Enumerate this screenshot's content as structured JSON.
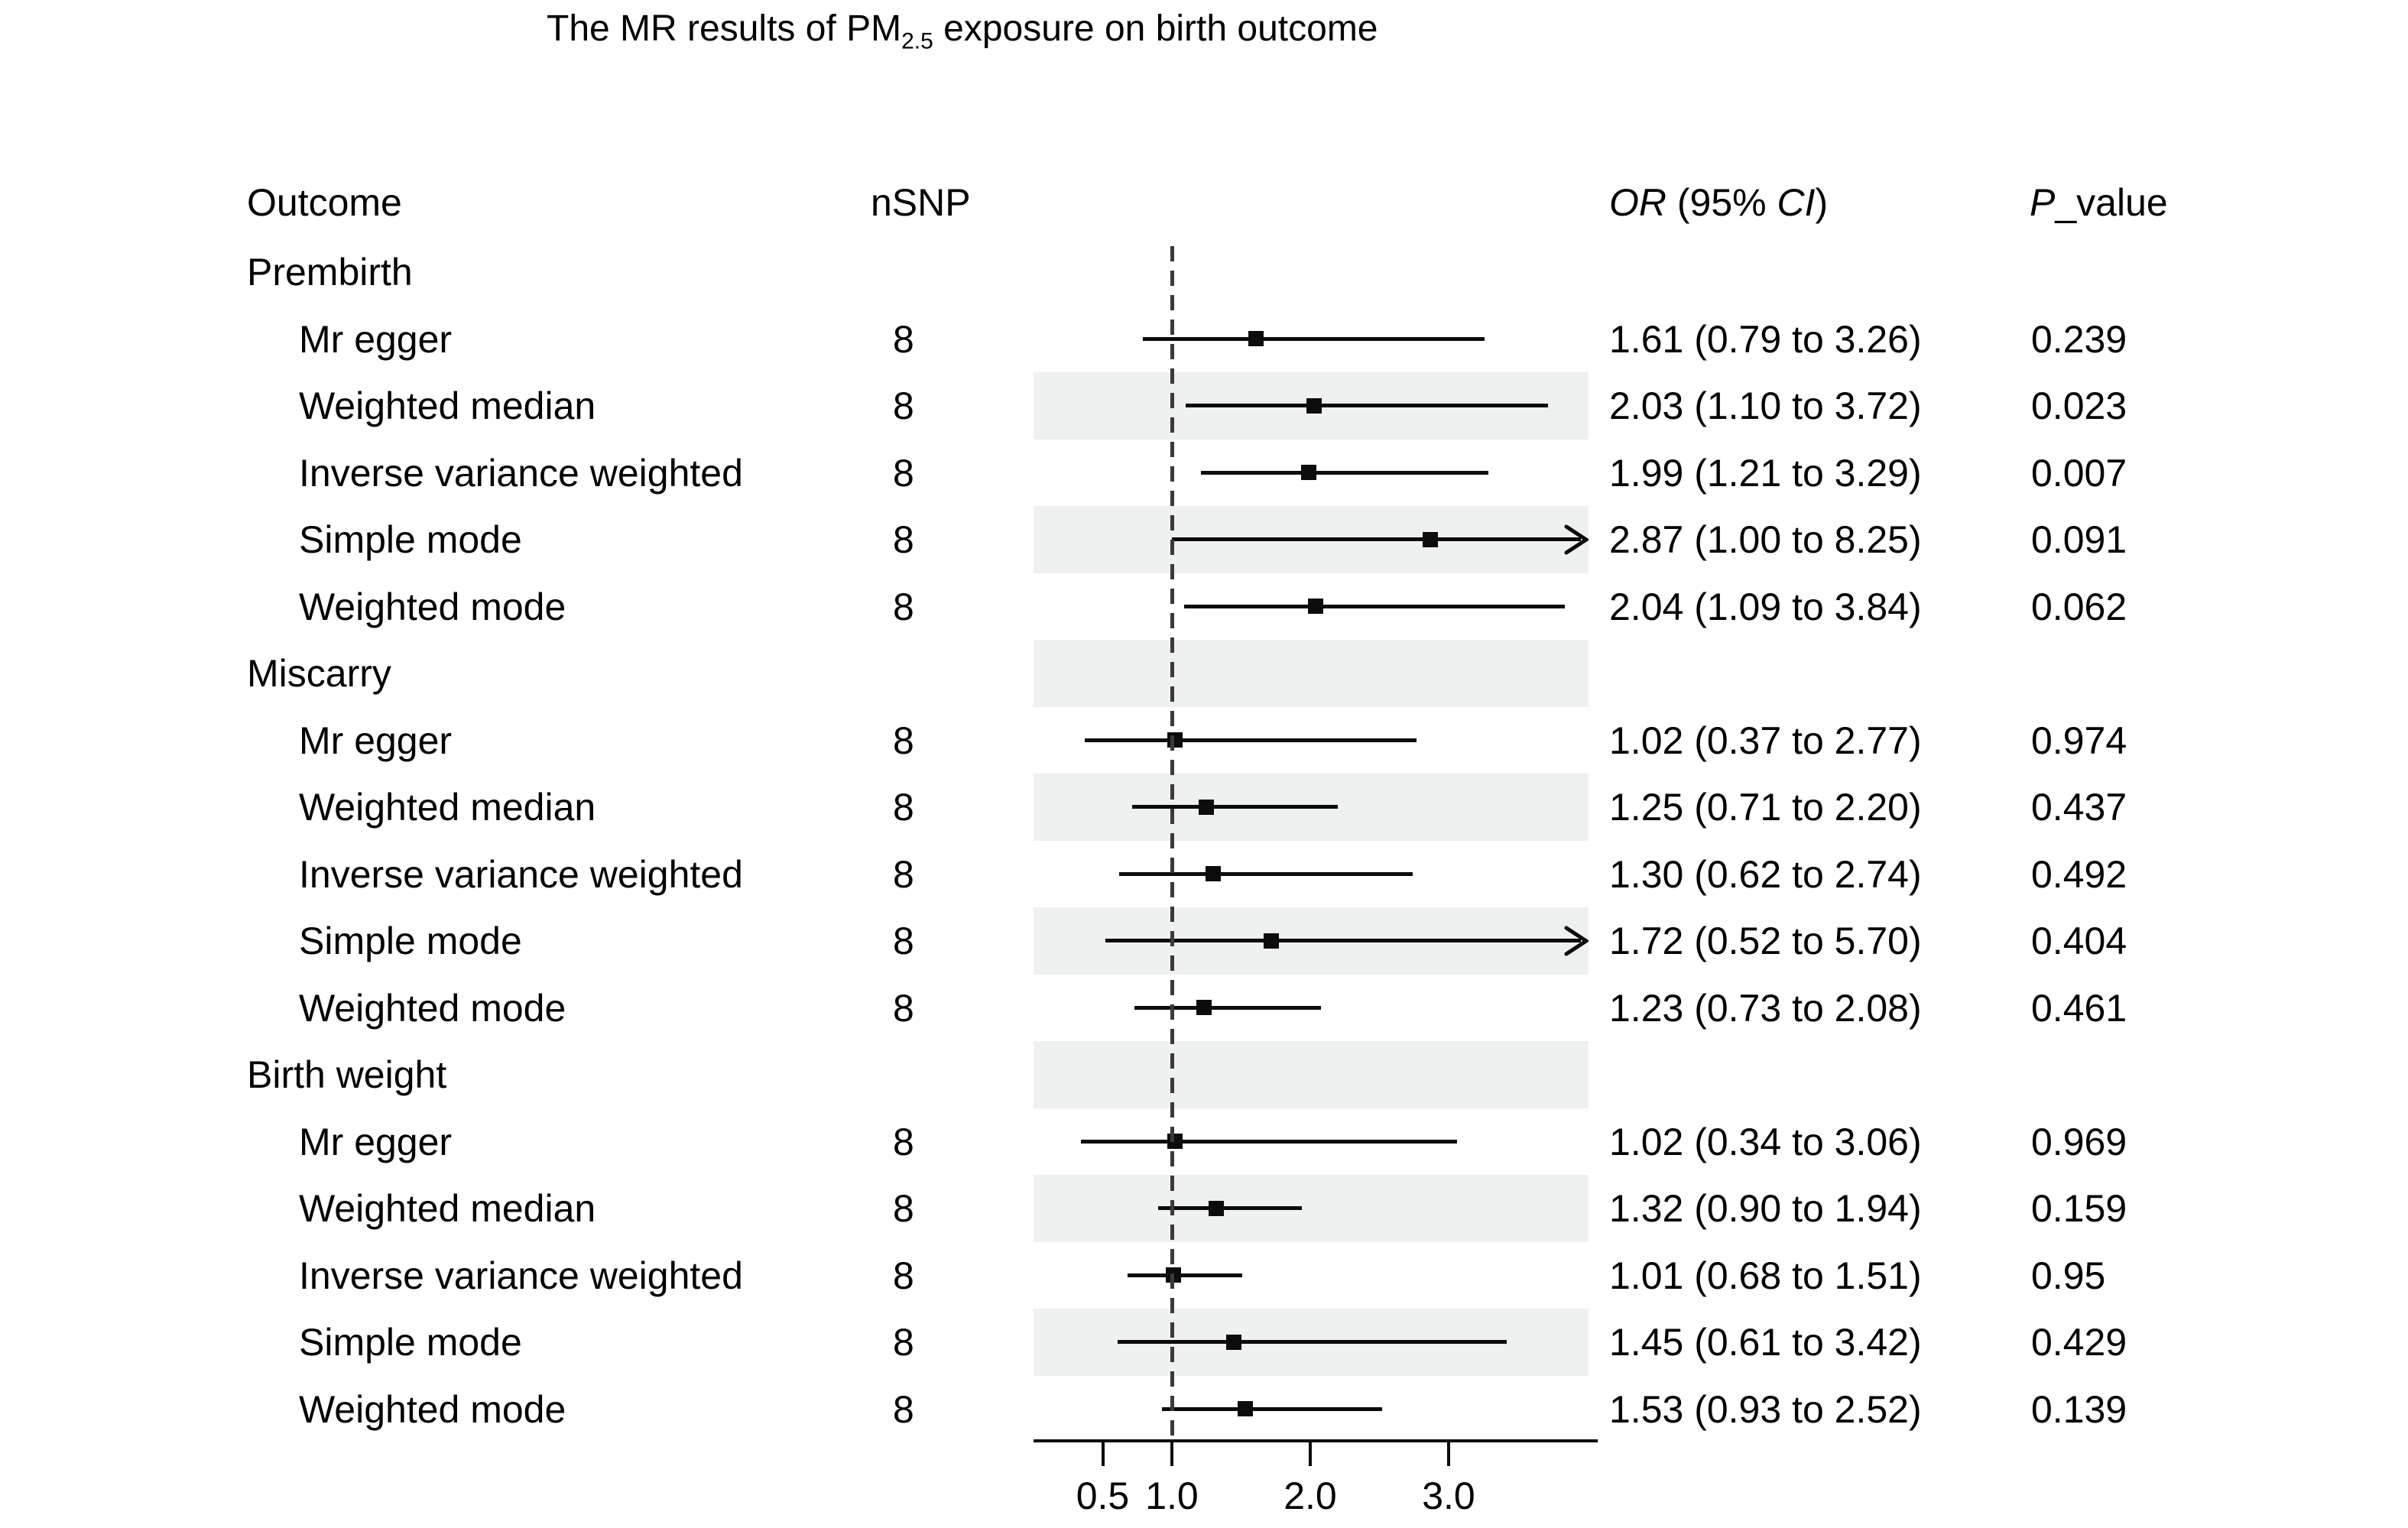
{
  "title": {
    "pre": "The MR results of PM",
    "sub": "2.5",
    "post": " exposure on birth outcome"
  },
  "columns": {
    "outcome": "Outcome",
    "nsnp": "nSNP",
    "or_ci": {
      "or": "OR",
      "mid": " (95% ",
      "ci": "CI",
      "close": ")"
    },
    "p": {
      "p": "P",
      "rest": "_value"
    }
  },
  "axis": {
    "scale": "linear",
    "range": [
      0,
      4.02
    ],
    "ticks": [
      0.5,
      1.0,
      2.0,
      3.0
    ],
    "tick_labels": [
      "0.5",
      "1.0",
      "2.0",
      "3.0"
    ],
    "reference_line": 1.0
  },
  "chart_data": {
    "type": "forest",
    "title": "The MR results of PM2.5 exposure on birth outcome",
    "xlabel": "",
    "reference_value": 1.0,
    "rows": [
      {
        "kind": "group",
        "label": "Prembirth",
        "shaded": false
      },
      {
        "kind": "method",
        "label": "Mr egger",
        "nsnp": "8",
        "est": 1.61,
        "lo": 0.79,
        "hi": 3.26,
        "or_ci": "1.61 (0.79 to 3.26)",
        "p": "0.239",
        "shaded": false,
        "arrow": false
      },
      {
        "kind": "method",
        "label": "Weighted median",
        "nsnp": "8",
        "est": 2.03,
        "lo": 1.1,
        "hi": 3.72,
        "or_ci": "2.03 (1.10 to 3.72)",
        "p": "0.023",
        "shaded": true,
        "arrow": false
      },
      {
        "kind": "method",
        "label": "Inverse variance weighted",
        "nsnp": "8",
        "est": 1.99,
        "lo": 1.21,
        "hi": 3.29,
        "or_ci": "1.99 (1.21 to 3.29)",
        "p": "0.007",
        "shaded": false,
        "arrow": false
      },
      {
        "kind": "method",
        "label": "Simple mode",
        "nsnp": "8",
        "est": 2.87,
        "lo": 1.0,
        "hi": 8.25,
        "or_ci": "2.87 (1.00 to 8.25)",
        "p": "0.091",
        "shaded": true,
        "arrow": true
      },
      {
        "kind": "method",
        "label": "Weighted mode",
        "nsnp": "8",
        "est": 2.04,
        "lo": 1.09,
        "hi": 3.84,
        "or_ci": "2.04 (1.09 to 3.84)",
        "p": "0.062",
        "shaded": false,
        "arrow": false
      },
      {
        "kind": "group",
        "label": "Miscarry",
        "shaded": true
      },
      {
        "kind": "method",
        "label": "Mr egger",
        "nsnp": "8",
        "est": 1.02,
        "lo": 0.37,
        "hi": 2.77,
        "or_ci": "1.02 (0.37 to 2.77)",
        "p": "0.974",
        "shaded": false,
        "arrow": false
      },
      {
        "kind": "method",
        "label": "Weighted median",
        "nsnp": "8",
        "est": 1.25,
        "lo": 0.71,
        "hi": 2.2,
        "or_ci": "1.25 (0.71 to 2.20)",
        "p": "0.437",
        "shaded": true,
        "arrow": false
      },
      {
        "kind": "method",
        "label": "Inverse variance weighted",
        "nsnp": "8",
        "est": 1.3,
        "lo": 0.62,
        "hi": 2.74,
        "or_ci": "1.30 (0.62 to 2.74)",
        "p": "0.492",
        "shaded": false,
        "arrow": false
      },
      {
        "kind": "method",
        "label": "Simple mode",
        "nsnp": "8",
        "est": 1.72,
        "lo": 0.52,
        "hi": 5.7,
        "or_ci": "1.72 (0.52 to 5.70)",
        "p": "0.404",
        "shaded": true,
        "arrow": true
      },
      {
        "kind": "method",
        "label": "Weighted mode",
        "nsnp": "8",
        "est": 1.23,
        "lo": 0.73,
        "hi": 2.08,
        "or_ci": "1.23 (0.73 to 2.08)",
        "p": "0.461",
        "shaded": false,
        "arrow": false
      },
      {
        "kind": "group",
        "label": "Birth weight",
        "shaded": true
      },
      {
        "kind": "method",
        "label": "Mr egger",
        "nsnp": "8",
        "est": 1.02,
        "lo": 0.34,
        "hi": 3.06,
        "or_ci": "1.02 (0.34 to 3.06)",
        "p": "0.969",
        "shaded": false,
        "arrow": false
      },
      {
        "kind": "method",
        "label": "Weighted median",
        "nsnp": "8",
        "est": 1.32,
        "lo": 0.9,
        "hi": 1.94,
        "or_ci": "1.32 (0.90 to 1.94)",
        "p": "0.159",
        "shaded": true,
        "arrow": false
      },
      {
        "kind": "method",
        "label": "Inverse variance weighted",
        "nsnp": "8",
        "est": 1.01,
        "lo": 0.68,
        "hi": 1.51,
        "or_ci": "1.01 (0.68 to 1.51)",
        "p": "0.95",
        "shaded": false,
        "arrow": false
      },
      {
        "kind": "method",
        "label": "Simple mode",
        "nsnp": "8",
        "est": 1.45,
        "lo": 0.61,
        "hi": 3.42,
        "or_ci": "1.45 (0.61 to 3.42)",
        "p": "0.429",
        "shaded": true,
        "arrow": false
      },
      {
        "kind": "method",
        "label": "Weighted mode",
        "nsnp": "8",
        "est": 1.53,
        "lo": 0.93,
        "hi": 2.52,
        "or_ci": "1.53 (0.93 to 2.52)",
        "p": "0.139",
        "shaded": false,
        "arrow": false
      }
    ]
  }
}
